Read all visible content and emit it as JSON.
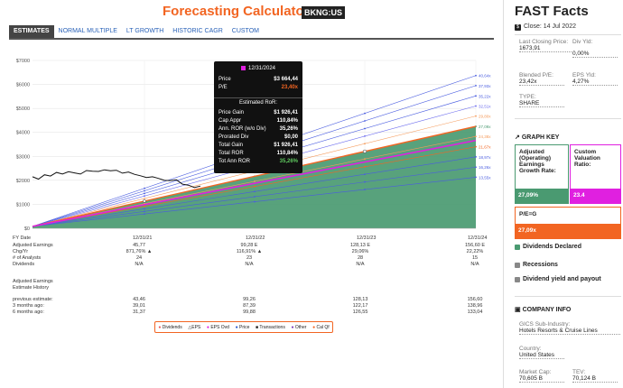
{
  "header": {
    "title": "Forecasting Calculators",
    "ticker": "BKNG:US"
  },
  "tabs": [
    {
      "label": "ESTIMATES",
      "active": true
    },
    {
      "label": "NORMAL MULTIPLE",
      "active": false
    },
    {
      "label": "LT GROWTH",
      "active": false
    },
    {
      "label": "HISTORIC CAGR",
      "active": false
    },
    {
      "label": "CUSTOM",
      "active": false
    }
  ],
  "chart_data": {
    "type": "line",
    "y_ticks": [
      "$7000",
      "$6000",
      "$5000",
      "$4000",
      "$3000",
      "$2000",
      "$1000",
      "$0"
    ],
    "ylim": [
      0,
      7000
    ],
    "x_ticks": [
      "FY Date",
      "12/31/21",
      "12/31/22",
      "12/31/23",
      "12/31/24"
    ],
    "fan_labels": [
      "40,64x",
      "37,93x",
      "35,22x",
      "32,51x",
      "29,80x",
      "27,09x",
      "24,38x",
      "21,67x",
      "18,97x",
      "16,26x",
      "13,55x"
    ],
    "fan_end_values": [
      6370,
      5950,
      5520,
      5100,
      4680,
      4250,
      3830,
      3400,
      2980,
      2550,
      2130
    ],
    "start_value": 80,
    "price_history": [
      2150,
      2050,
      2230,
      2180,
      2330,
      2260,
      2360,
      2310,
      2260,
      2410,
      2380,
      2370,
      2440,
      2400,
      2420,
      2300,
      2350,
      2250,
      2190,
      2120,
      2150,
      2080,
      2000,
      1990,
      2020,
      1840,
      1800,
      1700,
      1760
    ],
    "colors": {
      "area": "#4a9a71",
      "pe_line": "#e020e0",
      "normal_line": "#f26522",
      "price": "#111111"
    }
  },
  "tooltip": {
    "date": "12/31/2024",
    "price_label": "Price",
    "price_value": "$3 664,44",
    "pe_label": "P/E",
    "pe_value": "23,40x",
    "section": "Estimated RoR:",
    "rows": [
      {
        "label": "Price Gain",
        "value": "$1 926,41"
      },
      {
        "label": "Cap Appr",
        "value": "110,84%"
      },
      {
        "label": "Ann. ROR (w/o Div)",
        "value": "35,26%"
      },
      {
        "label": "Prorated Div",
        "value": "$0,00"
      },
      {
        "label": "Total Gain",
        "value": "$1 926,41"
      },
      {
        "label": "Total ROR",
        "value": "110,84%"
      },
      {
        "label": "Tot Ann ROR",
        "value": "35,26%"
      }
    ]
  },
  "table": {
    "rows": [
      {
        "label": "Adjusted Earnings",
        "cols": [
          "45,77",
          "99,28 E",
          "128,13 E",
          "156,60 E"
        ]
      },
      {
        "label": "Chg/Yr",
        "cols": [
          "871,76% ▲",
          "116,91% ▲",
          "29,06%",
          "22,22%"
        ]
      },
      {
        "label": "# of Analysts",
        "cols": [
          "24",
          "23",
          "28",
          "15"
        ]
      },
      {
        "label": "Dividends",
        "cols": [
          "N/A",
          "N/A",
          "N/A",
          "N/A"
        ]
      },
      {
        "label": "",
        "cols": [
          "",
          "",
          "",
          ""
        ]
      },
      {
        "label": "Adjusted Earnings",
        "cols": [
          "",
          "",
          "",
          ""
        ]
      },
      {
        "label": "Estimate History",
        "cols": [
          "",
          "",
          "",
          ""
        ]
      },
      {
        "label": "",
        "cols": [
          "",
          "",
          "",
          ""
        ]
      },
      {
        "label": "previous estimate:",
        "cols": [
          "43,46",
          "99,26",
          "128,13",
          "156,60"
        ]
      },
      {
        "label": "3 months ago:",
        "cols": [
          "39,01",
          "87,39",
          "122,17",
          "138,96"
        ]
      },
      {
        "label": "6 months ago:",
        "cols": [
          "31,37",
          "99,88",
          "126,55",
          "133,04"
        ]
      }
    ]
  },
  "legend": [
    "Dividends",
    "EPS",
    "EPS Ovd",
    "Price",
    "Transactions",
    "Other",
    "Cal Qf"
  ],
  "sidebar": {
    "title": "FAST Facts",
    "close": "Close: 14 Jul 2022",
    "close_icon": "dollar-icon",
    "facts": [
      {
        "label": "Last Closing Price:",
        "value": "1673,91"
      },
      {
        "label": "Div Yld:",
        "value": "0,00%"
      },
      {
        "label": "Blended P/E:",
        "value": "23,42x"
      },
      {
        "label": "EPS Yld:",
        "value": "4,27%"
      },
      {
        "label": "TYPE:",
        "value": "SHARE"
      }
    ],
    "graph_key": "GRAPH KEY",
    "boxes": [
      {
        "label": "Adjusted (Operating) Earnings Growth Rate:",
        "value": "27,09%",
        "color": "#4a9a71"
      },
      {
        "label": "Custom Valuation Ratio:",
        "value": "23.4",
        "color": "#e020e0"
      },
      {
        "label": "P/E=G",
        "value": "27,09x",
        "color": "#f26522"
      }
    ],
    "toggles": [
      "Dividends Declared",
      "Recessions",
      "Dividend yield and payout"
    ],
    "company_info": "COMPANY INFO",
    "company": [
      {
        "label": "GICS Sub-Industry:",
        "value": "Hotels Resorts & Cruise Lines"
      },
      {
        "label": "Country:",
        "value": "United States"
      },
      {
        "label": "Market Cap:",
        "value": "70,605 B"
      },
      {
        "label": "TEV:",
        "value": "70,124 B"
      }
    ]
  }
}
